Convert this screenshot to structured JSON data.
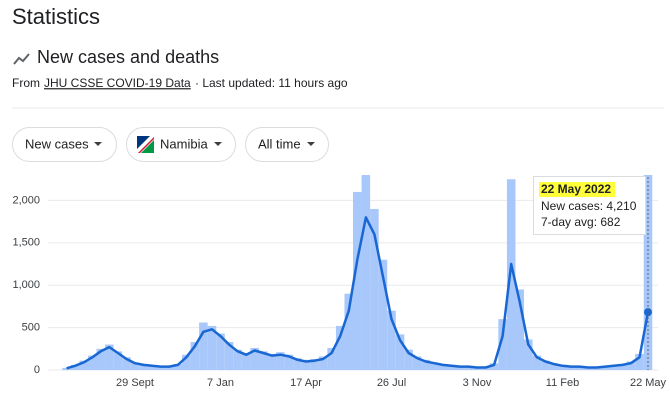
{
  "header": {
    "title": "Statistics",
    "subtitle": "New cases and deaths",
    "source_prefix": "From",
    "source_link": "JHU CSSE COVID-19 Data",
    "updated": "· Last updated: 11 hours ago"
  },
  "filters": [
    "New cases",
    "Namibia",
    "All time"
  ],
  "tooltip": {
    "date": "22 May 2022",
    "line1": "New cases: 4,210",
    "line2": "7-day avg: 682"
  },
  "chart_data": {
    "type": "bar-line",
    "categories": [
      null,
      null,
      null,
      null,
      null,
      null,
      null,
      null,
      "29 Sept",
      null,
      null,
      null,
      null,
      null,
      null,
      null,
      null,
      null,
      "7 Jan",
      null,
      null,
      null,
      null,
      null,
      null,
      null,
      null,
      null,
      "17 Apr",
      null,
      null,
      null,
      null,
      null,
      null,
      null,
      null,
      null,
      "26 Jul",
      null,
      null,
      null,
      null,
      null,
      null,
      null,
      null,
      null,
      "3 Nov",
      null,
      null,
      null,
      null,
      null,
      null,
      null,
      null,
      null,
      "11 Feb",
      null,
      null,
      null,
      null,
      null,
      null,
      null,
      null,
      null,
      "22 May"
    ],
    "series": [
      {
        "name": "New cases",
        "color": "#a8c7fa",
        "values": [
          25,
          60,
          110,
          170,
          250,
          300,
          220,
          150,
          90,
          70,
          55,
          45,
          45,
          70,
          180,
          330,
          560,
          520,
          430,
          330,
          240,
          200,
          260,
          220,
          190,
          210,
          180,
          140,
          120,
          130,
          160,
          260,
          520,
          900,
          2100,
          2300,
          1900,
          1300,
          700,
          420,
          240,
          160,
          120,
          90,
          70,
          60,
          50,
          45,
          35,
          35,
          80,
          600,
          2250,
          950,
          360,
          170,
          110,
          80,
          60,
          45,
          45,
          35,
          35,
          45,
          60,
          70,
          100,
          190,
          4210
        ]
      },
      {
        "name": "7-day avg",
        "color": "#1967d2",
        "values": [
          20,
          50,
          90,
          150,
          220,
          270,
          200,
          130,
          80,
          60,
          50,
          40,
          40,
          60,
          150,
          280,
          450,
          480,
          400,
          300,
          220,
          180,
          230,
          200,
          170,
          180,
          160,
          120,
          100,
          110,
          130,
          200,
          400,
          700,
          1300,
          1800,
          1600,
          1100,
          600,
          350,
          200,
          140,
          100,
          80,
          60,
          50,
          40,
          40,
          30,
          30,
          60,
          400,
          1250,
          800,
          300,
          150,
          100,
          70,
          50,
          40,
          40,
          30,
          30,
          40,
          50,
          60,
          80,
          150,
          682
        ]
      }
    ],
    "ylim": [
      0,
      2300
    ],
    "yticks": [
      0,
      500,
      {
        "value": 1000,
        "label": "1,000"
      },
      {
        "value": 1500,
        "label": "1,500"
      },
      {
        "value": 2000,
        "label": "2,000"
      }
    ],
    "grid": true
  }
}
